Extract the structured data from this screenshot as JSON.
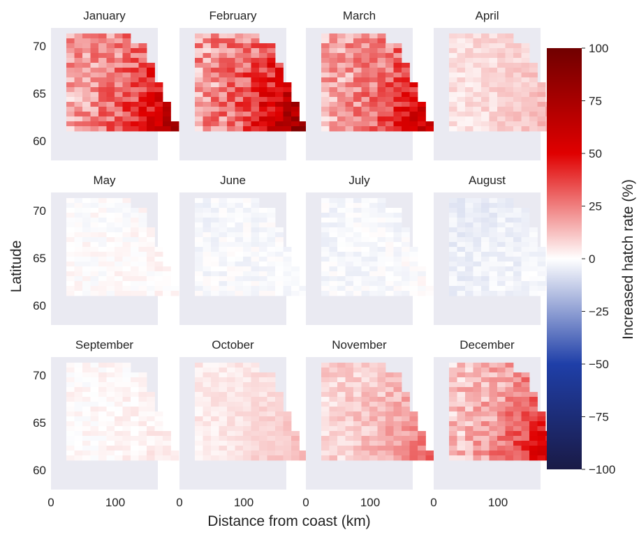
{
  "chart_data": {
    "type": "heatmap",
    "layout": "small-multiples 3x4",
    "xlabel": "Distance from coast (km)",
    "ylabel": "Latitude",
    "x_ticks": [
      0,
      100
    ],
    "y_ticks": [
      70,
      65,
      60
    ],
    "xlim": [
      0,
      165
    ],
    "ylim": [
      58,
      72
    ],
    "grid": false,
    "colorbar": {
      "label": "Increased hatch rate (%)",
      "ticks": [
        100,
        75,
        50,
        25,
        0,
        -25,
        -50,
        -75,
        -100
      ],
      "range": [
        -100,
        100
      ],
      "colormap": "seismic",
      "position": "right"
    },
    "colors": {
      "panel_background": "#eaeaf2",
      "negative_max": "#1a1a46",
      "negative_mid": "#1f3fa8",
      "zero": "#ffffff",
      "positive_mid": "#e00000",
      "positive_max": "#700000"
    },
    "panels": [
      {
        "title": "January",
        "mean_increase": 30,
        "coastal_increase": 70,
        "northern_increase": 35
      },
      {
        "title": "February",
        "mean_increase": 33,
        "coastal_increase": 85,
        "northern_increase": 40
      },
      {
        "title": "March",
        "mean_increase": 28,
        "coastal_increase": 65,
        "northern_increase": 35
      },
      {
        "title": "April",
        "mean_increase": 10,
        "coastal_increase": 18,
        "northern_increase": 15
      },
      {
        "title": "May",
        "mean_increase": 1,
        "coastal_increase": 2,
        "northern_increase": 0
      },
      {
        "title": "June",
        "mean_increase": -3,
        "coastal_increase": -2,
        "northern_increase": -4
      },
      {
        "title": "July",
        "mean_increase": -3,
        "coastal_increase": -2,
        "northern_increase": -4
      },
      {
        "title": "August",
        "mean_increase": -7,
        "coastal_increase": -5,
        "northern_increase": -10
      },
      {
        "title": "September",
        "mean_increase": 2,
        "coastal_increase": 5,
        "northern_increase": 2
      },
      {
        "title": "October",
        "mean_increase": 7,
        "coastal_increase": 15,
        "northern_increase": 8
      },
      {
        "title": "November",
        "mean_increase": 14,
        "coastal_increase": 30,
        "northern_increase": 15
      },
      {
        "title": "December",
        "mean_increase": 22,
        "coastal_increase": 60,
        "northern_increase": 18
      }
    ]
  }
}
